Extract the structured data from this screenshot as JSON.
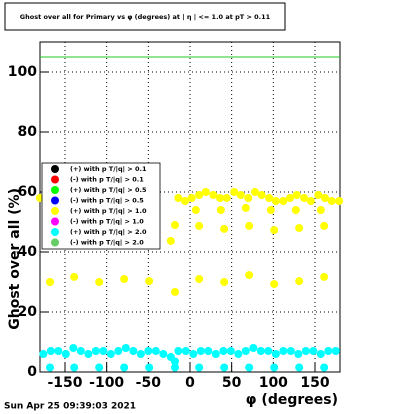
{
  "chart_data": {
    "type": "scatter",
    "title": "Ghost over all for Primary vs φ (degrees) at | η | <= 1.0 at pT > 0.11",
    "x_label": "φ (degrees)",
    "y_label": "Ghost over all (%)",
    "footer": "Sun Apr 25 09:39:03 2021",
    "xlim": [
      -180,
      180
    ],
    "ylim": [
      0,
      110
    ],
    "xticks": [
      -150,
      -100,
      -50,
      0,
      50,
      100,
      150
    ],
    "yticks": [
      0,
      20,
      40,
      60,
      80,
      100
    ],
    "grid": true,
    "legend": "left",
    "reference_line": {
      "value": 105,
      "color": "#22cc22"
    },
    "series": [
      {
        "name": "(+) with p T/|q| > 0.1",
        "color": "#000000",
        "x": [],
        "values": []
      },
      {
        "name": "(-) with p T/|q| > 0.1",
        "color": "#ff0000",
        "x": [],
        "values": []
      },
      {
        "name": "(+) with p T/|q| > 0.5",
        "color": "#00ff00",
        "x": [],
        "values": []
      },
      {
        "name": "(-) with p T/|q| > 0.5",
        "color": "#0000ff",
        "x": [],
        "values": []
      },
      {
        "name": "(+) with p T/|q| > 1.0",
        "color": "#ffff00",
        "x": [
          -180,
          -14,
          -6,
          2,
          11,
          19,
          28,
          36,
          44,
          53,
          61,
          70,
          78,
          86,
          95,
          103,
          112,
          120,
          128,
          137,
          145,
          154,
          162,
          170,
          179,
          -23,
          -18,
          11,
          41,
          71,
          101,
          131,
          161,
          7,
          37,
          67,
          97,
          127,
          157,
          -168,
          -139,
          -109,
          -79,
          -49,
          -18,
          11,
          41,
          71,
          101,
          131,
          161
        ],
        "values": [
          58,
          58,
          57,
          58,
          59,
          60,
          59,
          58,
          58,
          60,
          59,
          58,
          60,
          59,
          58,
          57,
          57,
          58,
          59,
          58,
          57,
          59,
          58,
          57,
          57,
          43.7,
          49,
          48.7,
          47.7,
          48.7,
          47.3,
          48,
          48.7,
          54,
          54,
          54.7,
          54,
          54,
          54,
          30,
          31.7,
          30,
          31,
          30.3,
          26.7,
          31,
          30,
          32.3,
          29.3,
          30.3,
          31.7
        ]
      },
      {
        "name": "(-) with p T/|q| > 1.0",
        "color": "#ff00ff",
        "x": [],
        "values": []
      },
      {
        "name": "(+) with p T/|q| > 2.0",
        "color": "#00ffff",
        "x": [
          -176,
          -167,
          -158,
          -149,
          -140,
          -131,
          -122,
          -113,
          -104,
          -95,
          -86,
          -77,
          -68,
          -59,
          -50,
          -41,
          -32,
          -23,
          -14,
          -5,
          4,
          13,
          22,
          31,
          40,
          49,
          58,
          67,
          76,
          85,
          94,
          103,
          112,
          121,
          130,
          139,
          148,
          157,
          166,
          175,
          -168,
          -139,
          -109,
          -79,
          -49,
          -18,
          11,
          41,
          71,
          101,
          131,
          161,
          -18
        ],
        "values": [
          6,
          7,
          7,
          6,
          8,
          7,
          6,
          7,
          7,
          6,
          7,
          8,
          7,
          6,
          7,
          7,
          6,
          5,
          7,
          7,
          6,
          7,
          7,
          6,
          7,
          7,
          6,
          7,
          8,
          7,
          7,
          6,
          7,
          7,
          6,
          7,
          7,
          6,
          7,
          7,
          1.5,
          1.5,
          1.5,
          1.5,
          1.5,
          1.5,
          1.5,
          1.5,
          1.5,
          1.5,
          1.5,
          1.5,
          3.5
        ]
      },
      {
        "name": "(-) with p T/|q| > 2.0",
        "color": "#66cc66",
        "x": [],
        "values": []
      }
    ]
  }
}
